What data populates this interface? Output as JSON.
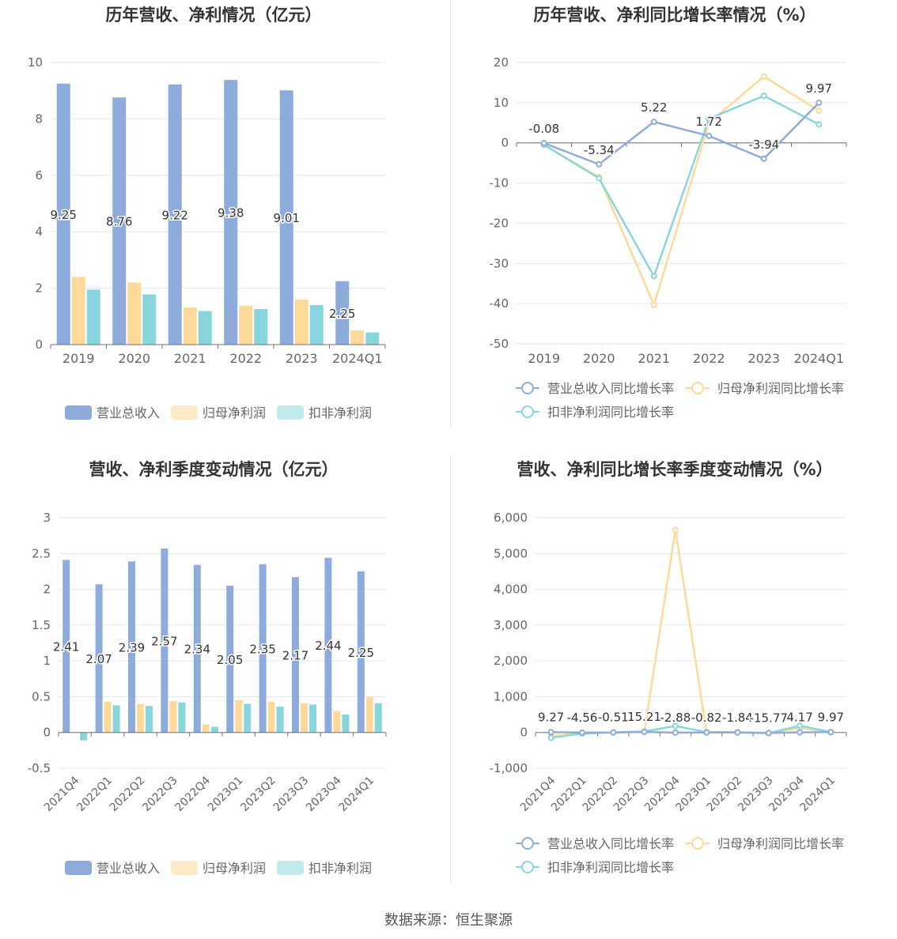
{
  "source_text": "数据来源：恒生聚源",
  "colors": {
    "revenue": "#8eacdb",
    "netprofit": "#ffd99a",
    "deducted": "#88d6db"
  },
  "chart_data": [
    {
      "id": "annual-bar",
      "type": "bar",
      "title": "历年营收、净利情况（亿元）",
      "categories": [
        "2019",
        "2020",
        "2021",
        "2022",
        "2023",
        "2024Q1"
      ],
      "ylim": [
        0,
        10
      ],
      "yticks": [
        "0",
        "2",
        "4",
        "6",
        "8",
        "10"
      ],
      "legend_position": "bottom",
      "series": [
        {
          "name": "营业总收入",
          "values": [
            9.25,
            8.76,
            9.22,
            9.38,
            9.01,
            2.25
          ],
          "labels": [
            "9.25",
            "8.76",
            "9.22",
            "9.38",
            "9.01",
            "2.25"
          ]
        },
        {
          "name": "归母净利润",
          "values": [
            2.4,
            2.2,
            1.32,
            1.38,
            1.6,
            0.5
          ]
        },
        {
          "name": "扣非净利润",
          "values": [
            1.95,
            1.78,
            1.19,
            1.26,
            1.4,
            0.43
          ]
        }
      ]
    },
    {
      "id": "annual-line",
      "type": "line",
      "title": "历年营收、净利同比增长率情况（%）",
      "categories": [
        "2019",
        "2020",
        "2021",
        "2022",
        "2023",
        "2024Q1"
      ],
      "ylim": [
        -50,
        20
      ],
      "yticks": [
        "-50",
        "-40",
        "-30",
        "-20",
        "-10",
        "0",
        "10",
        "20"
      ],
      "legend_position": "bottom",
      "series": [
        {
          "name": "营业总收入同比增长率",
          "values": [
            -0.08,
            -5.34,
            5.22,
            1.72,
            -3.94,
            9.97
          ],
          "labels": [
            "-0.08",
            "-5.34",
            "5.22",
            "1.72",
            "-3.94",
            "9.97"
          ]
        },
        {
          "name": "归母净利润同比增长率",
          "values": [
            -0.5,
            -8.5,
            -40.3,
            5.0,
            16.5,
            8.0
          ]
        },
        {
          "name": "扣非净利润同比增长率",
          "values": [
            -0.5,
            -8.8,
            -33.2,
            6.0,
            11.7,
            4.6
          ]
        }
      ]
    },
    {
      "id": "quarter-bar",
      "type": "bar",
      "title": "营收、净利季度变动情况（亿元）",
      "categories": [
        "2021Q4",
        "2022Q1",
        "2022Q2",
        "2022Q3",
        "2022Q4",
        "2023Q1",
        "2023Q2",
        "2023Q3",
        "2023Q4",
        "2024Q1"
      ],
      "ylim": [
        -0.5,
        3
      ],
      "yticks": [
        "-0.5",
        "0",
        "0.5",
        "1",
        "1.5",
        "2",
        "2.5",
        "3"
      ],
      "legend_position": "bottom",
      "series": [
        {
          "name": "营业总收入",
          "values": [
            2.41,
            2.07,
            2.39,
            2.57,
            2.34,
            2.05,
            2.35,
            2.17,
            2.44,
            2.25
          ],
          "labels": [
            "2.41",
            "2.07",
            "2.39",
            "2.57",
            "2.34",
            "2.05",
            "2.35",
            "2.17",
            "2.44",
            "2.25"
          ]
        },
        {
          "name": "归母净利润",
          "values": [
            0.0,
            0.43,
            0.4,
            0.44,
            0.11,
            0.45,
            0.43,
            0.41,
            0.3,
            0.5
          ]
        },
        {
          "name": "扣非净利润",
          "values": [
            -0.11,
            0.38,
            0.37,
            0.42,
            0.08,
            0.4,
            0.36,
            0.39,
            0.25,
            0.41
          ]
        }
      ]
    },
    {
      "id": "quarter-line",
      "type": "line",
      "title": "营收、净利同比增长率季度变动情况（%）",
      "categories": [
        "2021Q4",
        "2022Q1",
        "2022Q2",
        "2022Q3",
        "2022Q4",
        "2023Q1",
        "2023Q2",
        "2023Q3",
        "2023Q4",
        "2024Q1"
      ],
      "ylim": [
        -1000,
        6000
      ],
      "yticks": [
        "-1,000",
        "0",
        "1,000",
        "2,000",
        "3,000",
        "4,000",
        "5,000",
        "6,000"
      ],
      "legend_position": "bottom",
      "series": [
        {
          "name": "营业总收入同比增长率",
          "values": [
            9.27,
            -4.56,
            -0.51,
            15.21,
            -2.88,
            -0.82,
            -1.84,
            -15.77,
            4.17,
            9.97
          ],
          "labels": [
            "9.27",
            "-4.56",
            "-0.51",
            "15.21",
            "-2.88",
            "-0.82",
            "-1.84",
            "-15.77",
            "4.17",
            "9.97"
          ]
        },
        {
          "name": "归母净利润同比增长率",
          "values": [
            -100,
            -20,
            0,
            20,
            5660,
            10,
            5,
            -10,
            120,
            10
          ]
        },
        {
          "name": "扣非净利润同比增长率",
          "values": [
            -150,
            -30,
            0,
            30,
            180,
            10,
            5,
            -20,
            190,
            10
          ]
        }
      ]
    }
  ]
}
